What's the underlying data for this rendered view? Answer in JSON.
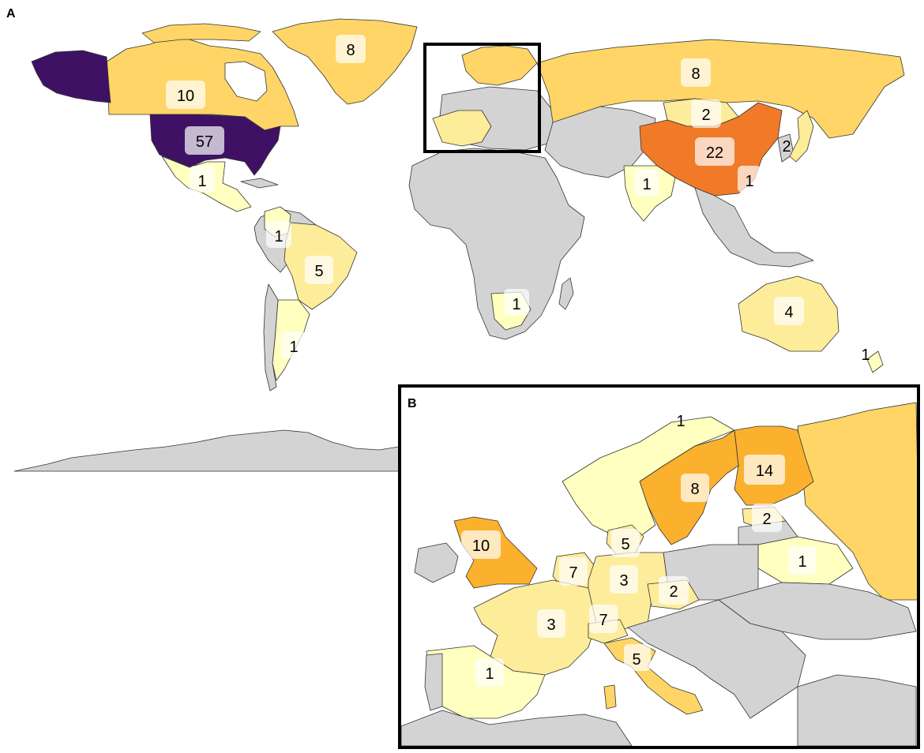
{
  "panels": [
    {
      "id": "A",
      "label": "A"
    },
    {
      "id": "B",
      "label": "B"
    }
  ],
  "legend_colors": {
    "none": "#d3d3d3",
    "c1": "#ffffc0",
    "c2_5": "#fdec9a",
    "c7_10": "#fed566",
    "c14": "#fbb12e",
    "c22": "#f07a28",
    "c57": "#3f1165"
  },
  "world_labels": [
    {
      "id": "usa",
      "value": "57"
    },
    {
      "id": "canada",
      "value": "10"
    },
    {
      "id": "greenland",
      "value": "8"
    },
    {
      "id": "russia",
      "value": "8"
    },
    {
      "id": "mongolia",
      "value": "2"
    },
    {
      "id": "china",
      "value": "22"
    },
    {
      "id": "japan",
      "value": "2"
    },
    {
      "id": "taiwan",
      "value": "1"
    },
    {
      "id": "india",
      "value": "1"
    },
    {
      "id": "mexico",
      "value": "1"
    },
    {
      "id": "colombia",
      "value": "1"
    },
    {
      "id": "brazil",
      "value": "5"
    },
    {
      "id": "argentina",
      "value": "1"
    },
    {
      "id": "south-africa",
      "value": "1"
    },
    {
      "id": "australia",
      "value": "4"
    },
    {
      "id": "new-zealand",
      "value": "1"
    }
  ],
  "europe_labels": [
    {
      "id": "norway",
      "value": "1"
    },
    {
      "id": "finland",
      "value": "14"
    },
    {
      "id": "sweden",
      "value": "8"
    },
    {
      "id": "estonia",
      "value": "2"
    },
    {
      "id": "uk",
      "value": "10"
    },
    {
      "id": "denmark",
      "value": "5"
    },
    {
      "id": "belarus",
      "value": "1"
    },
    {
      "id": "netherlands",
      "value": "7"
    },
    {
      "id": "germany",
      "value": "3"
    },
    {
      "id": "czech",
      "value": "2"
    },
    {
      "id": "france",
      "value": "3"
    },
    {
      "id": "switzerland",
      "value": "7"
    },
    {
      "id": "italy",
      "value": "5"
    },
    {
      "id": "spain",
      "value": "1"
    }
  ]
}
